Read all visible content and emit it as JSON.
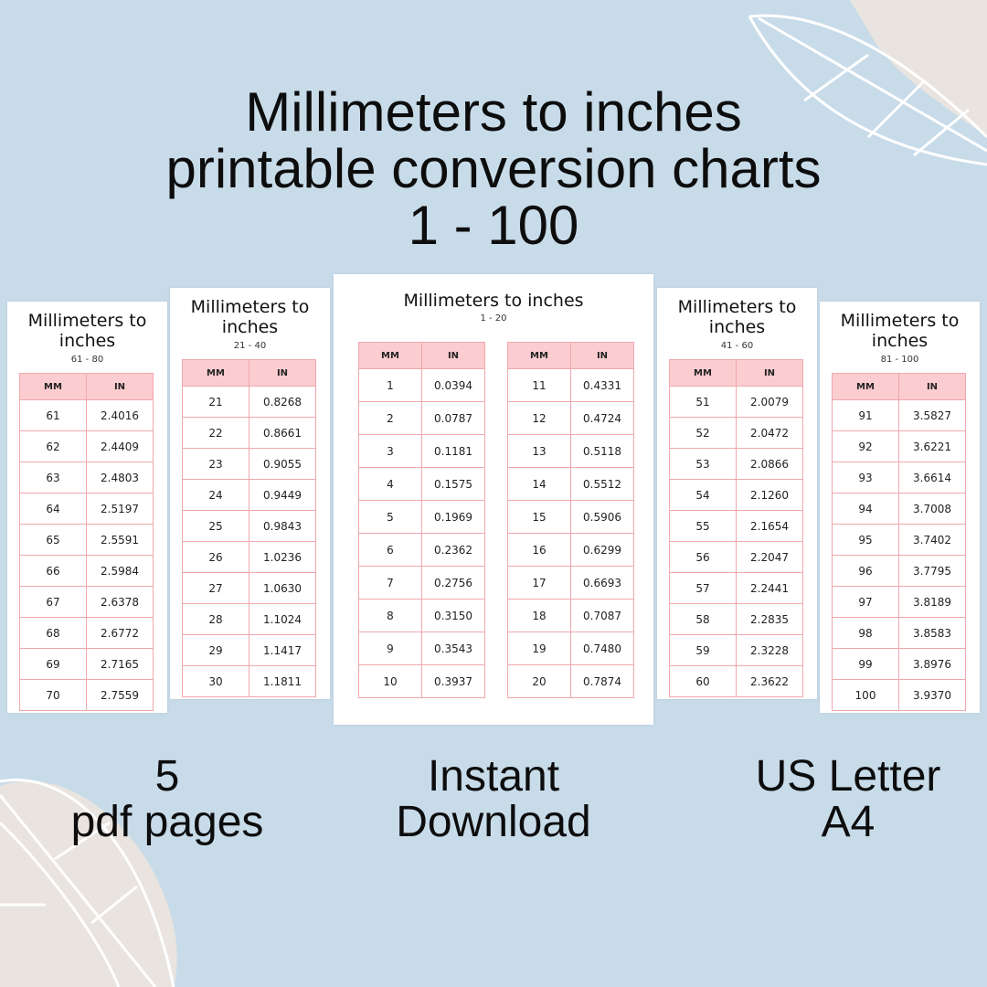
{
  "headline": {
    "line1": "Millimeters to inches",
    "line2": "printable conversion charts",
    "line3": "1 - 100"
  },
  "colors": {
    "background": "#c8dbe9",
    "header_fill": "#fbcdd0",
    "table_border": "#f0a8ac",
    "blob": "#e9e4df"
  },
  "headers": {
    "mm": "MM",
    "in": "IN"
  },
  "pages": {
    "p61": {
      "title": "Millimeters to inches",
      "range": "61 - 80",
      "left": [
        [
          "61",
          "2.4016"
        ],
        [
          "62",
          "2.4409"
        ],
        [
          "63",
          "2.4803"
        ],
        [
          "64",
          "2.5197"
        ],
        [
          "65",
          "2.5591"
        ],
        [
          "66",
          "2.5984"
        ],
        [
          "67",
          "2.6378"
        ],
        [
          "68",
          "2.6772"
        ],
        [
          "69",
          "2.7165"
        ],
        [
          "70",
          "2.7559"
        ]
      ]
    },
    "p21": {
      "title": "Millimeters to inches",
      "range": "21 - 40",
      "left": [
        [
          "21",
          "0.8268"
        ],
        [
          "22",
          "0.8661"
        ],
        [
          "23",
          "0.9055"
        ],
        [
          "24",
          "0.9449"
        ],
        [
          "25",
          "0.9843"
        ],
        [
          "26",
          "1.0236"
        ],
        [
          "27",
          "1.0630"
        ],
        [
          "28",
          "1.1024"
        ],
        [
          "29",
          "1.1417"
        ],
        [
          "30",
          "1.1811"
        ]
      ]
    },
    "p1": {
      "title": "Millimeters to inches",
      "range": "1 - 20",
      "left": [
        [
          "1",
          "0.0394"
        ],
        [
          "2",
          "0.0787"
        ],
        [
          "3",
          "0.1181"
        ],
        [
          "4",
          "0.1575"
        ],
        [
          "5",
          "0.1969"
        ],
        [
          "6",
          "0.2362"
        ],
        [
          "7",
          "0.2756"
        ],
        [
          "8",
          "0.3150"
        ],
        [
          "9",
          "0.3543"
        ],
        [
          "10",
          "0.3937"
        ]
      ],
      "right": [
        [
          "11",
          "0.4331"
        ],
        [
          "12",
          "0.4724"
        ],
        [
          "13",
          "0.5118"
        ],
        [
          "14",
          "0.5512"
        ],
        [
          "15",
          "0.5906"
        ],
        [
          "16",
          "0.6299"
        ],
        [
          "17",
          "0.6693"
        ],
        [
          "18",
          "0.7087"
        ],
        [
          "19",
          "0.7480"
        ],
        [
          "20",
          "0.7874"
        ]
      ]
    },
    "p41": {
      "title": "Millimeters to inches",
      "range": "41 - 60",
      "right": [
        [
          "51",
          "2.0079"
        ],
        [
          "52",
          "2.0472"
        ],
        [
          "53",
          "2.0866"
        ],
        [
          "54",
          "2.1260"
        ],
        [
          "55",
          "2.1654"
        ],
        [
          "56",
          "2.2047"
        ],
        [
          "57",
          "2.2441"
        ],
        [
          "58",
          "2.2835"
        ],
        [
          "59",
          "2.3228"
        ],
        [
          "60",
          "2.3622"
        ]
      ]
    },
    "p81": {
      "title": "Millimeters to inches",
      "range": "81 - 100",
      "right": [
        [
          "91",
          "3.5827"
        ],
        [
          "92",
          "3.6221"
        ],
        [
          "93",
          "3.6614"
        ],
        [
          "94",
          "3.7008"
        ],
        [
          "95",
          "3.7402"
        ],
        [
          "96",
          "3.7795"
        ],
        [
          "97",
          "3.8189"
        ],
        [
          "98",
          "3.8583"
        ],
        [
          "99",
          "3.8976"
        ],
        [
          "100",
          "3.9370"
        ]
      ]
    }
  },
  "features": {
    "pages_count": "5",
    "pages_label": "pdf pages",
    "instant": "Instant",
    "download": "Download",
    "size1": "US Letter",
    "size2": "A4"
  }
}
